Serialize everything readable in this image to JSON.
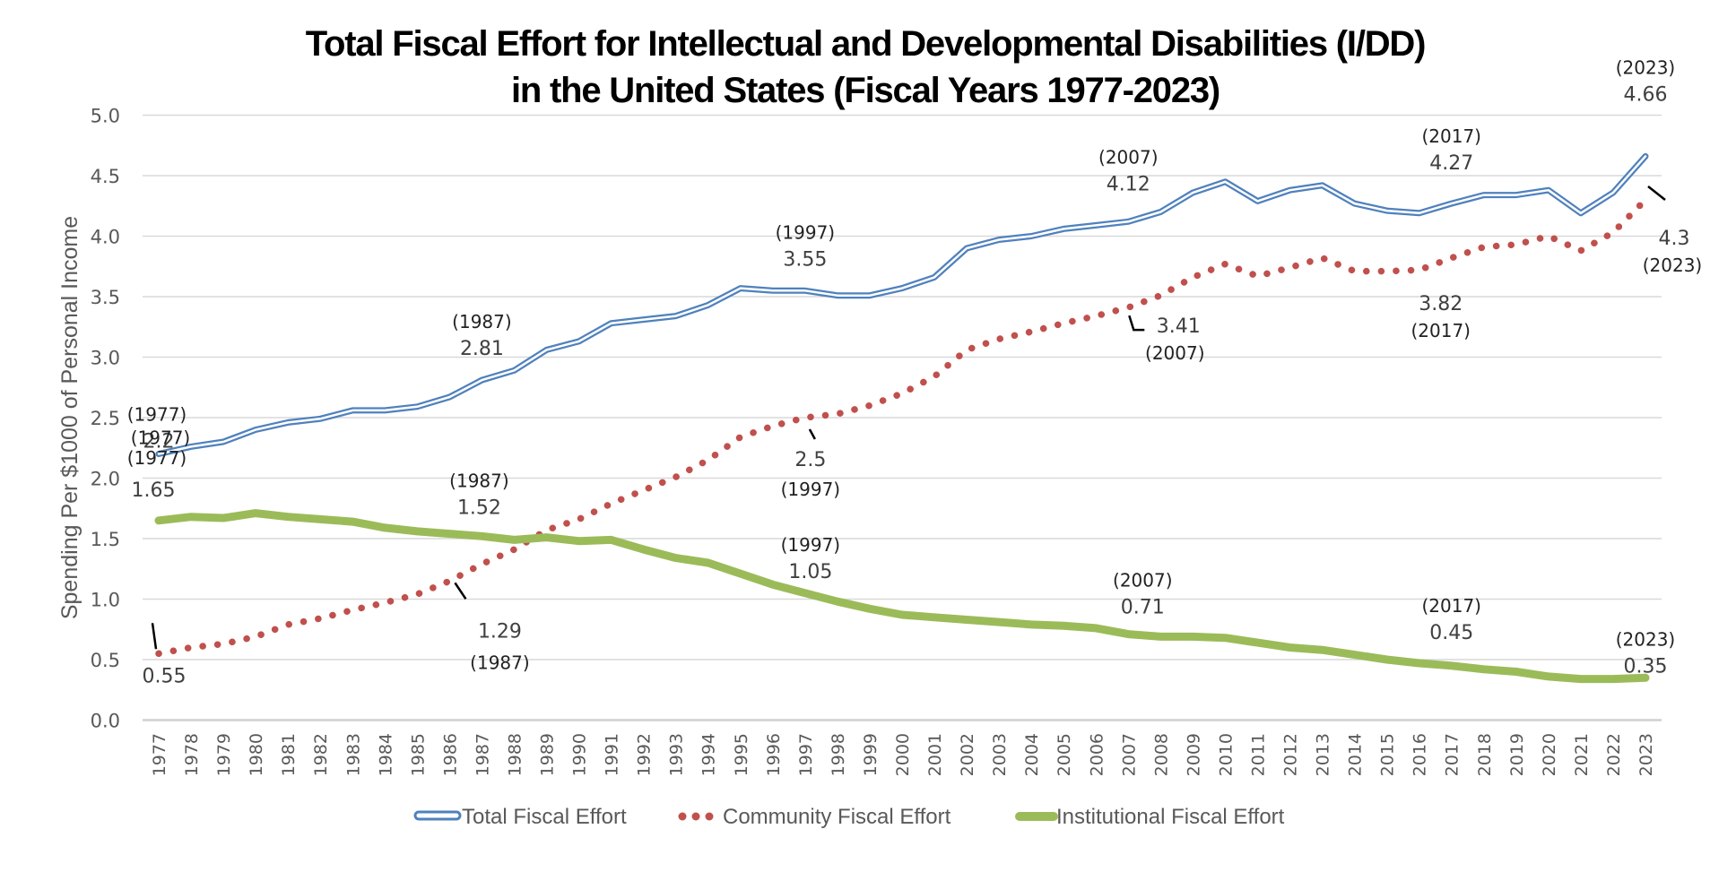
{
  "chart_data": {
    "type": "line",
    "title": [
      "Total Fiscal Effort for Intellectual and Developmental Disabilities (I/DD)",
      "in the United States (Fiscal Years 1977-2023)"
    ],
    "xlabel": "",
    "ylabel": "Spending Per $1000 of Personal Income",
    "ylim": [
      0,
      5
    ],
    "yticks": [
      "0.0",
      "0.5",
      "1.0",
      "1.5",
      "2.0",
      "2.5",
      "3.0",
      "3.5",
      "4.0",
      "4.5",
      "5.0"
    ],
    "grid": true,
    "legend_position": "bottom",
    "x": [
      1977,
      1978,
      1979,
      1980,
      1981,
      1982,
      1983,
      1984,
      1985,
      1986,
      1987,
      1988,
      1989,
      1990,
      1991,
      1992,
      1993,
      1994,
      1995,
      1996,
      1997,
      1998,
      1999,
      2000,
      2001,
      2002,
      2003,
      2004,
      2005,
      2006,
      2007,
      2008,
      2009,
      2010,
      2011,
      2012,
      2013,
      2014,
      2015,
      2016,
      2017,
      2018,
      2019,
      2020,
      2021,
      2022,
      2023
    ],
    "series": [
      {
        "name": "Total Fiscal Effort",
        "color": "#4f81bd",
        "style": "double-line",
        "values": [
          2.2,
          2.26,
          2.3,
          2.4,
          2.46,
          2.49,
          2.56,
          2.56,
          2.59,
          2.67,
          2.81,
          2.89,
          3.06,
          3.13,
          3.28,
          3.31,
          3.34,
          3.43,
          3.57,
          3.55,
          3.55,
          3.51,
          3.51,
          3.57,
          3.66,
          3.9,
          3.97,
          4.0,
          4.06,
          4.09,
          4.12,
          4.2,
          4.36,
          4.45,
          4.29,
          4.38,
          4.42,
          4.27,
          4.21,
          4.19,
          4.27,
          4.34,
          4.34,
          4.38,
          4.19,
          4.36,
          4.66
        ]
      },
      {
        "name": "Community Fiscal Effort",
        "color": "#c0504d",
        "style": "dotted",
        "values": [
          0.55,
          0.6,
          0.63,
          0.69,
          0.79,
          0.84,
          0.91,
          0.97,
          1.04,
          1.15,
          1.29,
          1.41,
          1.57,
          1.66,
          1.79,
          1.9,
          2.01,
          2.15,
          2.34,
          2.43,
          2.5,
          2.53,
          2.6,
          2.7,
          2.84,
          3.06,
          3.15,
          3.21,
          3.28,
          3.34,
          3.41,
          3.51,
          3.66,
          3.77,
          3.67,
          3.74,
          3.82,
          3.71,
          3.71,
          3.72,
          3.82,
          3.91,
          3.93,
          4.0,
          3.88,
          4.03,
          4.3
        ]
      },
      {
        "name": "Institutional Fiscal Effort",
        "color": "#9bbb59",
        "style": "thick",
        "values": [
          1.65,
          1.68,
          1.67,
          1.71,
          1.68,
          1.66,
          1.64,
          1.59,
          1.56,
          1.54,
          1.52,
          1.49,
          1.51,
          1.48,
          1.49,
          1.41,
          1.34,
          1.3,
          1.21,
          1.12,
          1.05,
          0.98,
          0.92,
          0.87,
          0.85,
          0.83,
          0.81,
          0.79,
          0.78,
          0.76,
          0.71,
          0.69,
          0.69,
          0.68,
          0.64,
          0.6,
          0.58,
          0.54,
          0.5,
          0.47,
          0.45,
          0.42,
          0.4,
          0.36,
          0.34,
          0.34,
          0.35
        ]
      }
    ],
    "annotations": [
      {
        "series": 0,
        "year": 1977,
        "label_year": "(1977)",
        "label_value": "2.2",
        "placement": "above"
      },
      {
        "series": 0,
        "year": 1987,
        "label_year": "(1987)",
        "label_value": "2.81",
        "placement": "above"
      },
      {
        "series": 0,
        "year": 1997,
        "label_year": "(1997)",
        "label_value": "3.55",
        "placement": "above"
      },
      {
        "series": 0,
        "year": 2007,
        "label_year": "(2007)",
        "label_value": "4.12",
        "placement": "above"
      },
      {
        "series": 0,
        "year": 2017,
        "label_year": "(2017)",
        "label_value": "4.27",
        "placement": "above"
      },
      {
        "series": 0,
        "year": 2023,
        "label_year": "(2023)",
        "label_value": "4.66",
        "placement": "above"
      },
      {
        "series": 1,
        "year": 1977,
        "label_year": "(1977)",
        "label_value": "0.55",
        "placement": "split"
      },
      {
        "series": 1,
        "year": 1987,
        "label_year": "(1987)",
        "label_value": "1.29",
        "placement": "below"
      },
      {
        "series": 1,
        "year": 1997,
        "label_year": "(1997)",
        "label_value": "2.5",
        "placement": "below"
      },
      {
        "series": 1,
        "year": 2007,
        "label_year": "(2007)",
        "label_value": "3.41",
        "placement": "below-right"
      },
      {
        "series": 1,
        "year": 2017,
        "label_year": "(2017)",
        "label_value": "3.82",
        "placement": "below"
      },
      {
        "series": 1,
        "year": 2023,
        "label_year": "(2023)",
        "label_value": "4.3",
        "placement": "below-right"
      },
      {
        "series": 2,
        "year": 1977,
        "label_year": "(1977)",
        "label_value": "1.65",
        "placement": "above"
      },
      {
        "series": 2,
        "year": 1987,
        "label_year": "(1987)",
        "label_value": "1.52",
        "placement": "above"
      },
      {
        "series": 2,
        "year": 1997,
        "label_year": "(1997)",
        "label_value": "1.05",
        "placement": "above"
      },
      {
        "series": 2,
        "year": 2007,
        "label_year": "(2007)",
        "label_value": "0.71",
        "placement": "above"
      },
      {
        "series": 2,
        "year": 2017,
        "label_year": "(2017)",
        "label_value": "0.45",
        "placement": "above"
      },
      {
        "series": 2,
        "year": 2023,
        "label_year": "(2023)",
        "label_value": "0.35",
        "placement": "above"
      }
    ]
  }
}
